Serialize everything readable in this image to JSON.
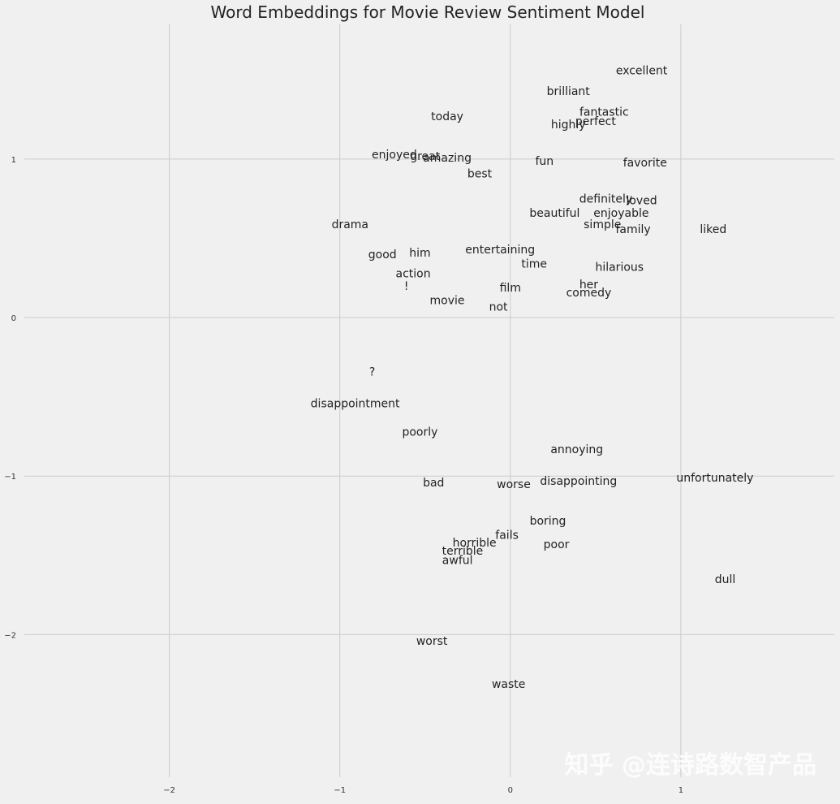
{
  "watermark": "知乎 @连诗路数智产品",
  "chart_data": {
    "type": "scatter",
    "title": "Word Embeddings for Movie Review Sentiment Model",
    "xlabel": "",
    "ylabel": "",
    "xlim": [
      -2.85,
      1.9
    ],
    "ylim": [
      -2.9,
      1.85
    ],
    "grid": true,
    "xticks": [
      -2,
      -1,
      0,
      1
    ],
    "yticks": [
      -2,
      -1,
      0,
      1
    ],
    "xtick_labels": [
      "−2",
      "−1",
      "0",
      "1"
    ],
    "ytick_labels": [
      "−2",
      "−1",
      "0",
      "1"
    ],
    "points": [
      {
        "label": "excellent",
        "x": 0.77,
        "y": 1.56
      },
      {
        "label": "brilliant",
        "x": 0.34,
        "y": 1.43
      },
      {
        "label": "fantastic",
        "x": 0.55,
        "y": 1.3
      },
      {
        "label": "perfect",
        "x": 0.5,
        "y": 1.24
      },
      {
        "label": "highly",
        "x": 0.34,
        "y": 1.22
      },
      {
        "label": "today",
        "x": -0.37,
        "y": 1.27
      },
      {
        "label": "enjoyed",
        "x": -0.68,
        "y": 1.03
      },
      {
        "label": "great",
        "x": -0.5,
        "y": 1.02
      },
      {
        "label": "amazing",
        "x": -0.37,
        "y": 1.01
      },
      {
        "label": "fun",
        "x": 0.2,
        "y": 0.99
      },
      {
        "label": "favorite",
        "x": 0.79,
        "y": 0.98
      },
      {
        "label": "best",
        "x": -0.18,
        "y": 0.91
      },
      {
        "label": "definitely",
        "x": 0.56,
        "y": 0.75
      },
      {
        "label": "loved",
        "x": 0.77,
        "y": 0.74
      },
      {
        "label": "beautiful",
        "x": 0.26,
        "y": 0.66
      },
      {
        "label": "enjoyable",
        "x": 0.65,
        "y": 0.66
      },
      {
        "label": "simple",
        "x": 0.54,
        "y": 0.59
      },
      {
        "label": "family",
        "x": 0.72,
        "y": 0.56
      },
      {
        "label": "liked",
        "x": 1.19,
        "y": 0.56
      },
      {
        "label": "drama",
        "x": -0.94,
        "y": 0.59
      },
      {
        "label": "entertaining",
        "x": -0.06,
        "y": 0.43
      },
      {
        "label": "good",
        "x": -0.75,
        "y": 0.4
      },
      {
        "label": "him",
        "x": -0.53,
        "y": 0.41
      },
      {
        "label": "time",
        "x": 0.14,
        "y": 0.34
      },
      {
        "label": "hilarious",
        "x": 0.64,
        "y": 0.32
      },
      {
        "label": "action",
        "x": -0.57,
        "y": 0.28
      },
      {
        "label": "her",
        "x": 0.46,
        "y": 0.21
      },
      {
        "label": "!",
        "x": -0.61,
        "y": 0.2
      },
      {
        "label": "film",
        "x": 0.0,
        "y": 0.19
      },
      {
        "label": "comedy",
        "x": 0.46,
        "y": 0.16
      },
      {
        "label": "movie",
        "x": -0.37,
        "y": 0.11
      },
      {
        "label": "not",
        "x": -0.07,
        "y": 0.07
      },
      {
        "label": "?",
        "x": -0.81,
        "y": -0.34
      },
      {
        "label": "disappointment",
        "x": -0.91,
        "y": -0.54
      },
      {
        "label": "poorly",
        "x": -0.53,
        "y": -0.72
      },
      {
        "label": "annoying",
        "x": 0.39,
        "y": -0.83
      },
      {
        "label": "unfortunately",
        "x": 1.2,
        "y": -1.01
      },
      {
        "label": "bad",
        "x": -0.45,
        "y": -1.04
      },
      {
        "label": "worse",
        "x": 0.02,
        "y": -1.05
      },
      {
        "label": "disappointing",
        "x": 0.4,
        "y": -1.03
      },
      {
        "label": "boring",
        "x": 0.22,
        "y": -1.28
      },
      {
        "label": "fails",
        "x": -0.02,
        "y": -1.37
      },
      {
        "label": "horrible",
        "x": -0.21,
        "y": -1.42
      },
      {
        "label": "poor",
        "x": 0.27,
        "y": -1.43
      },
      {
        "label": "terrible",
        "x": -0.28,
        "y": -1.47
      },
      {
        "label": "awful",
        "x": -0.31,
        "y": -1.53
      },
      {
        "label": "dull",
        "x": 1.26,
        "y": -1.65
      },
      {
        "label": "worst",
        "x": -0.46,
        "y": -2.04
      },
      {
        "label": "waste",
        "x": -0.01,
        "y": -2.31
      }
    ]
  }
}
